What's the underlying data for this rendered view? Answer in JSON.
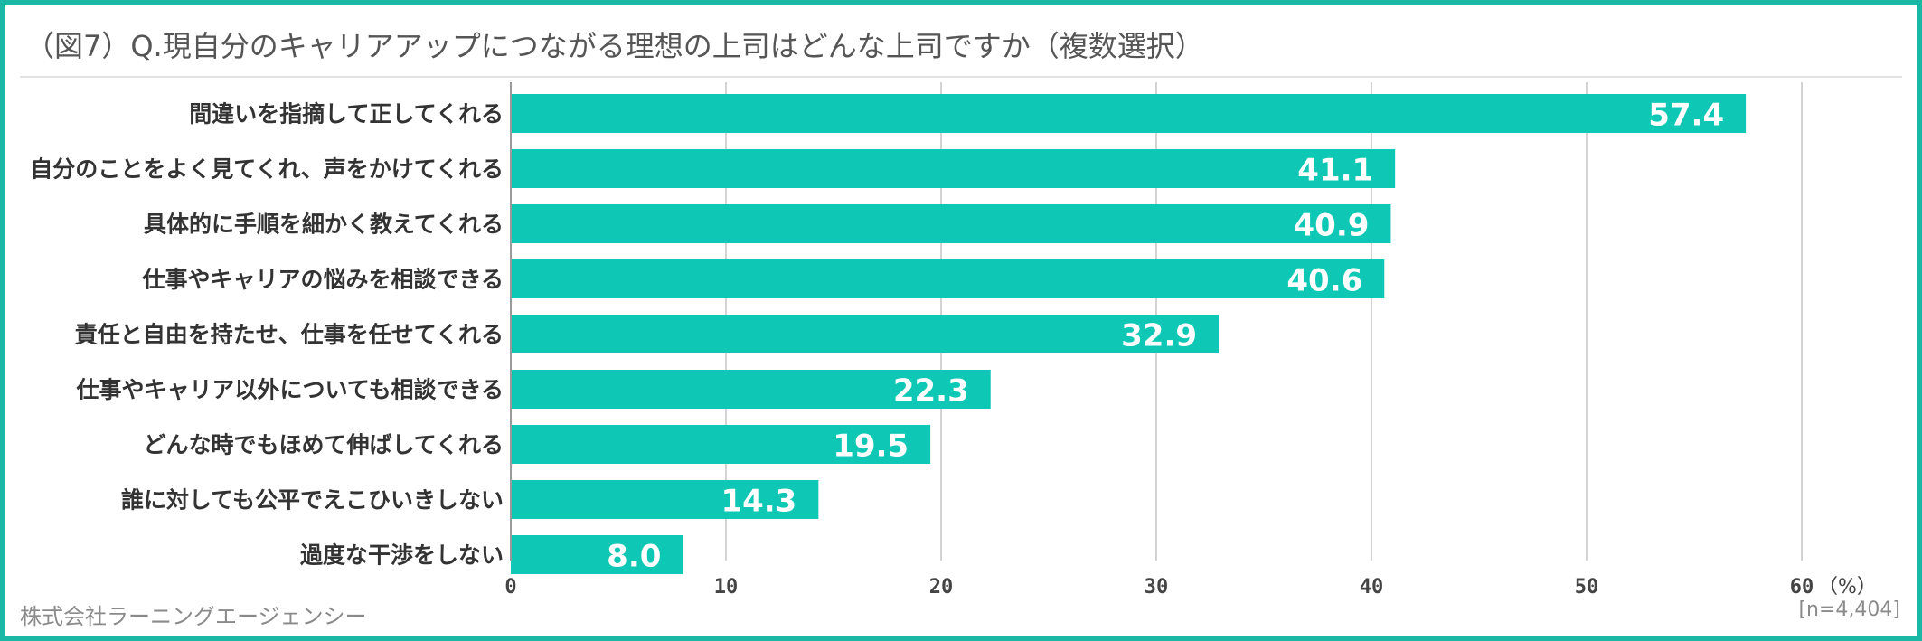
{
  "title": "（図7）Q.現自分のキャリアアップにつながる理想の上司はどんな上司ですか（複数選択）",
  "company": "株式会社ラーニングエージェンシー",
  "note": "[n=4,404]",
  "colors": {
    "bar": "#0ec8b5",
    "frame": "#1bb8a6",
    "grid": "#d4d4d4",
    "label": "#333333",
    "value": "#ffffff"
  },
  "chart_data": {
    "type": "bar",
    "orientation": "horizontal",
    "categories": [
      "間違いを指摘して正してくれる",
      "自分のことをよく見てくれ、声をかけてくれる",
      "具体的に手順を細かく教えてくれる",
      "仕事やキャリアの悩みを相談できる",
      "責任と自由を持たせ、仕事を任せてくれる",
      "仕事やキャリア以外についても相談できる",
      "どんな時でもほめて伸ばしてくれる",
      "誰に対しても公平でえこひいきしない",
      "過度な干渉をしない"
    ],
    "values": [
      57.4,
      41.1,
      40.9,
      40.6,
      32.9,
      22.3,
      19.5,
      14.3,
      8.0
    ],
    "value_labels": [
      "57.4",
      "41.1",
      "40.9",
      "40.6",
      "32.9",
      "22.3",
      "19.5",
      "14.3",
      "8.0"
    ],
    "xlim": [
      0,
      60
    ],
    "xticks": [
      0,
      10,
      20,
      30,
      40,
      50,
      60
    ],
    "xtick_labels": [
      "0",
      "10",
      "20",
      "30",
      "40",
      "50",
      "60"
    ],
    "unit_label": "（%）",
    "grid": true,
    "legend": "none"
  }
}
